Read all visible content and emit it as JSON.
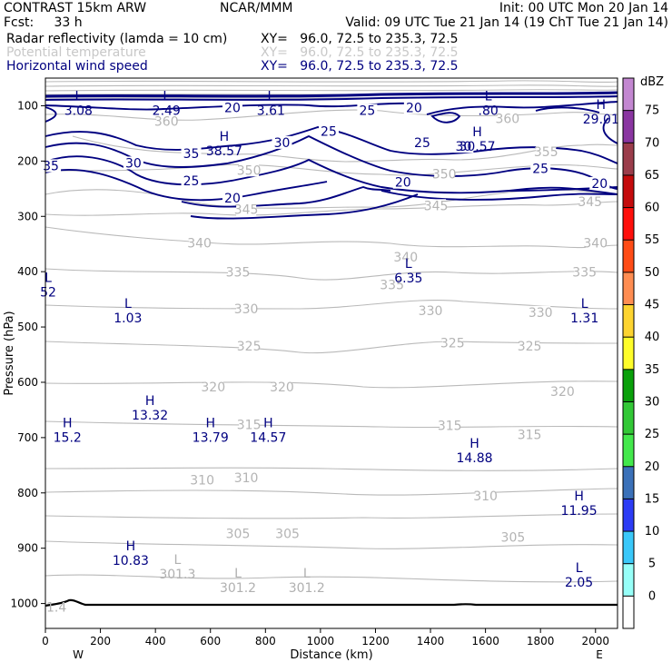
{
  "header": {
    "model": "CONTRAST 15km ARW",
    "org": "NCAR/MMM",
    "init": "Init: 00 UTC Mon 20 Jan 14",
    "fcst": "Fcst:     33 h",
    "valid": "Valid: 09 UTC Tue 21 Jan 14 (19 ChT Tue 21 Jan 14)"
  },
  "fields": [
    {
      "name": "Radar reflectivity (lamda = 10 cm)",
      "xy": "XY=   96.0, 72.5 to 235.3, 72.5",
      "color": "#000000"
    },
    {
      "name": "Potential temperature",
      "xy": "XY=   96.0, 72.5 to 235.3, 72.5",
      "color": "#bdbdbd"
    },
    {
      "name": "Horizontal wind speed",
      "xy": "XY=   96.0, 72.5 to 235.3, 72.5",
      "color": "#000080"
    }
  ],
  "colorbar": {
    "unit": "dBZ",
    "levels": [
      "0",
      "5",
      "10",
      "15",
      "20",
      "25",
      "30",
      "35",
      "40",
      "45",
      "50",
      "55",
      "60",
      "65",
      "70",
      "75"
    ],
    "colors": [
      "#ffffff",
      "#97fff8",
      "#3ac8f9",
      "#2c3cf5",
      "#3b71b9",
      "#43e84c",
      "#32c836",
      "#09a00a",
      "#fefd2a",
      "#fdd430",
      "#ff8d52",
      "#ff4c16",
      "#fe0f0b",
      "#c40b0c",
      "#9b3d4b",
      "#8a36a1",
      "#c387d1"
    ]
  },
  "chart_data": {
    "type": "contour",
    "xlabel": "Distance (km)",
    "ylabel": "Pressure (hPa)",
    "xlim": [
      0,
      2080
    ],
    "ylim": [
      1045,
      50
    ],
    "x_ticks": [
      0,
      200,
      400,
      600,
      800,
      1000,
      1200,
      1400,
      1600,
      1800,
      2000
    ],
    "y_ticks": [
      100,
      200,
      300,
      400,
      500,
      600,
      700,
      800,
      900,
      1000
    ],
    "x_end_labels": {
      "left": "W",
      "right": "E"
    },
    "series": [
      {
        "name": "Horizontal wind speed",
        "color": "#000080",
        "contour_labels": [
          {
            "text": "20",
            "x": 680,
            "y": 105
          },
          {
            "text": "25",
            "x": 1170,
            "y": 110
          },
          {
            "text": "20",
            "x": 1340,
            "y": 105
          },
          {
            "text": "25",
            "x": 1030,
            "y": 148
          },
          {
            "text": "30",
            "x": 860,
            "y": 168
          },
          {
            "text": "35",
            "x": 530,
            "y": 188
          },
          {
            "text": "35",
            "x": 20,
            "y": 210
          },
          {
            "text": "30",
            "x": 320,
            "y": 205
          },
          {
            "text": "30",
            "x": 1520,
            "y": 175
          },
          {
            "text": "25",
            "x": 1370,
            "y": 168
          },
          {
            "text": "25",
            "x": 530,
            "y": 237
          },
          {
            "text": "20",
            "x": 680,
            "y": 268
          },
          {
            "text": "20",
            "x": 1300,
            "y": 240
          },
          {
            "text": "25",
            "x": 1800,
            "y": 215
          },
          {
            "text": "20",
            "x": 2015,
            "y": 242
          }
        ],
        "extrema": [
          {
            "type": "H",
            "value": "38.57",
            "x": 650,
            "y": 170
          },
          {
            "type": "H",
            "value": "30.57",
            "x": 1570,
            "y": 162
          },
          {
            "type": "H",
            "value": "29.01",
            "x": 2020,
            "y": 112
          },
          {
            "type": "L",
            "value": "3.08",
            "x": 120,
            "y": 97
          },
          {
            "type": "L",
            "value": "2.49",
            "x": 440,
            "y": 97
          },
          {
            "type": "L",
            "value": "3.61",
            "x": 820,
            "y": 97
          },
          {
            "type": "L",
            "value": ".80",
            "x": 1610,
            "y": 97
          }
        ]
      },
      {
        "name": "Potential temperature",
        "color": "#b4b4b4",
        "contour_labels": [
          {
            "text": "360",
            "x": 440,
            "y": 130
          },
          {
            "text": "350",
            "x": 740,
            "y": 218
          },
          {
            "text": "350",
            "x": 1450,
            "y": 225
          },
          {
            "text": "360",
            "x": 1680,
            "y": 125
          },
          {
            "text": "355",
            "x": 1820,
            "y": 185
          },
          {
            "text": "345",
            "x": 730,
            "y": 289
          },
          {
            "text": "345",
            "x": 1420,
            "y": 282
          },
          {
            "text": "345",
            "x": 1980,
            "y": 275
          },
          {
            "text": "340",
            "x": 560,
            "y": 350
          },
          {
            "text": "340",
            "x": 1310,
            "y": 375
          },
          {
            "text": "340",
            "x": 2000,
            "y": 350
          },
          {
            "text": "335",
            "x": 700,
            "y": 402
          },
          {
            "text": "335",
            "x": 1260,
            "y": 425
          },
          {
            "text": "335",
            "x": 1960,
            "y": 402
          },
          {
            "text": "330",
            "x": 730,
            "y": 469
          },
          {
            "text": "330",
            "x": 1400,
            "y": 472
          },
          {
            "text": "330",
            "x": 1800,
            "y": 475
          },
          {
            "text": "325",
            "x": 740,
            "y": 536
          },
          {
            "text": "325",
            "x": 1480,
            "y": 530
          },
          {
            "text": "325",
            "x": 1760,
            "y": 536
          },
          {
            "text": "320",
            "x": 610,
            "y": 610
          },
          {
            "text": "320",
            "x": 860,
            "y": 610
          },
          {
            "text": "320",
            "x": 1880,
            "y": 618
          },
          {
            "text": "315",
            "x": 740,
            "y": 678
          },
          {
            "text": "315",
            "x": 1470,
            "y": 680
          },
          {
            "text": "315",
            "x": 1760,
            "y": 696
          },
          {
            "text": "310",
            "x": 570,
            "y": 778
          },
          {
            "text": "310",
            "x": 730,
            "y": 774
          },
          {
            "text": "310",
            "x": 1600,
            "y": 807
          },
          {
            "text": "305",
            "x": 700,
            "y": 875
          },
          {
            "text": "305",
            "x": 880,
            "y": 875
          },
          {
            "text": "305",
            "x": 1700,
            "y": 882
          }
        ],
        "extrema": [
          {
            "type": "L",
            "value": "301.3",
            "x": 480,
            "y": 935
          },
          {
            "type": "L",
            "value": "301.2",
            "x": 700,
            "y": 960
          },
          {
            "type": "L",
            "value": "301.2",
            "x": 950,
            "y": 960
          }
        ]
      },
      {
        "name": "Radar reflectivity",
        "color": "#000000",
        "extrema": [
          {
            "type": "",
            "value": "1.4",
            "x": 40,
            "y": 995
          }
        ]
      }
    ],
    "extra_extrema": [
      {
        "type": "L",
        "value": "6.35",
        "x": 1320,
        "y": 400
      },
      {
        "type": "L",
        "value": "1.03",
        "x": 300,
        "y": 472
      },
      {
        "type": "L",
        "value": "1.31",
        "x": 1960,
        "y": 472
      },
      {
        "type": "L",
        "value": "52",
        "x": 10,
        "y": 425
      },
      {
        "type": "H",
        "value": "13.32",
        "x": 380,
        "y": 648
      },
      {
        "type": "H",
        "value": "15.2",
        "x": 80,
        "y": 688
      },
      {
        "type": "H",
        "value": "13.79",
        "x": 600,
        "y": 688
      },
      {
        "type": "H",
        "value": "14.57",
        "x": 810,
        "y": 688
      },
      {
        "type": "H",
        "value": "14.88",
        "x": 1560,
        "y": 725
      },
      {
        "type": "H",
        "value": "11.95",
        "x": 1940,
        "y": 820
      },
      {
        "type": "H",
        "value": "10.83",
        "x": 310,
        "y": 910
      },
      {
        "type": "L",
        "value": "2.05",
        "x": 1940,
        "y": 950
      }
    ]
  }
}
